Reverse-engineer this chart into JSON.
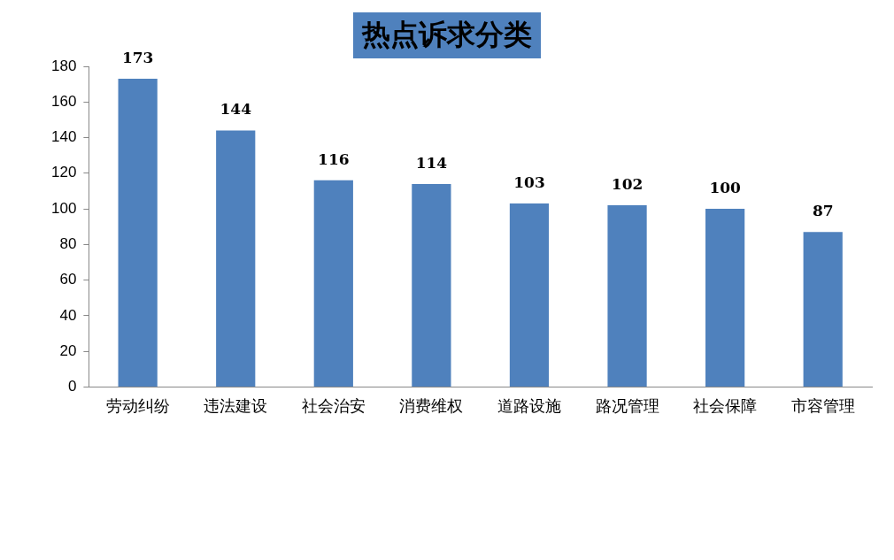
{
  "chart_data": {
    "type": "bar",
    "title": "热点诉求分类",
    "categories": [
      "劳动纠纷",
      "违法建设",
      "社会治安",
      "消费维权",
      "道路设施",
      "路况管理",
      "社会保障",
      "市容管理"
    ],
    "values": [
      173,
      144,
      116,
      114,
      103,
      102,
      100,
      87
    ],
    "color": "#4f81bd",
    "ylim": [
      0,
      180
    ],
    "yticks": [
      0,
      20,
      40,
      60,
      80,
      100,
      120,
      140,
      160,
      180
    ],
    "grid": false,
    "legend": false,
    "data_labels": true
  }
}
